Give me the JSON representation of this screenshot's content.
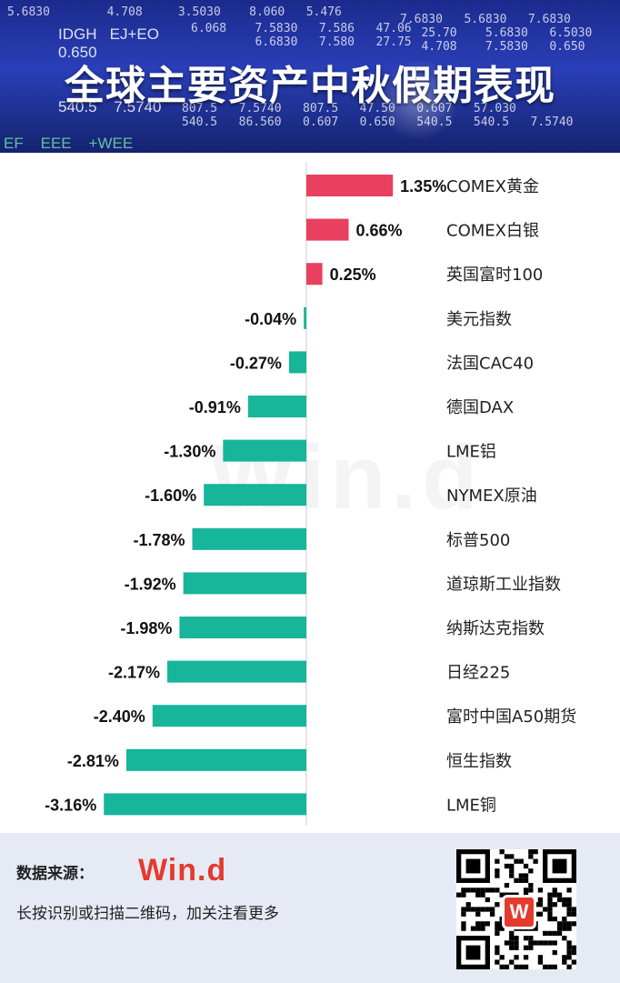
{
  "header": {
    "title": "全球主要资产中秋假期表现"
  },
  "chart_data": {
    "type": "bar",
    "orientation": "horizontal",
    "title": "全球主要资产中秋假期表现",
    "categories": [
      "COMEX黄金",
      "COMEX白银",
      "英国富时100",
      "美元指数",
      "法国CAC40",
      "德国DAX",
      "LME铝",
      "NYMEX原油",
      "标普500",
      "道琼斯工业指数",
      "纳斯达克指数",
      "日经225",
      "富时中国A50期货",
      "恒生指数",
      "LME铜"
    ],
    "values": [
      1.35,
      0.66,
      0.25,
      -0.04,
      -0.27,
      -0.91,
      -1.3,
      -1.6,
      -1.78,
      -1.92,
      -1.98,
      -2.17,
      -2.4,
      -2.81,
      -3.16
    ],
    "value_labels": [
      "1.35%",
      "0.66%",
      "0.25%",
      "-0.04%",
      "-0.27%",
      "-0.91%",
      "-1.30%",
      "-1.60%",
      "-1.78%",
      "-1.92%",
      "-1.98%",
      "-2.17%",
      "-2.40%",
      "-2.81%",
      "-3.16%"
    ],
    "colors": {
      "positive": "#e8405e",
      "negative": "#17b59a"
    },
    "xlim": [
      -3.16,
      1.35
    ],
    "grid": false,
    "legend": "none"
  },
  "watermark": "Win.d",
  "footer": {
    "source_label": "数据来源：",
    "source_logo": "Win.d",
    "note": "长按识别或扫描二维码，加关注看更多",
    "qr_icon": "qr-code-icon",
    "qr_badge": "W"
  }
}
